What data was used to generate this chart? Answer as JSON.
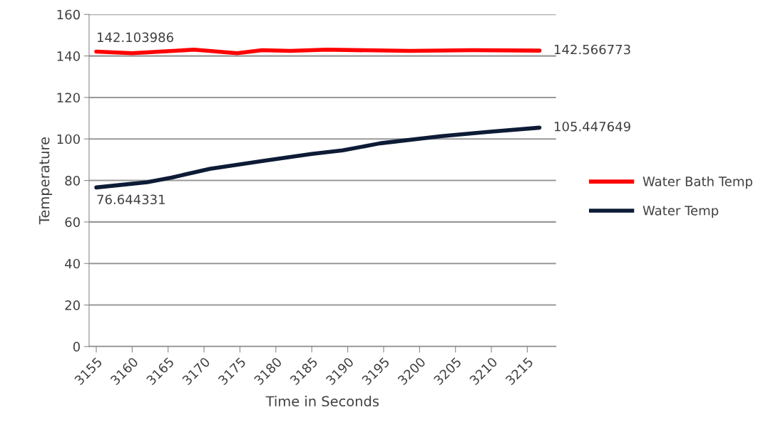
{
  "chart_data": {
    "type": "line",
    "xlabel": "Time in Seconds",
    "ylabel": "Temperature",
    "xlim": [
      3154,
      3219
    ],
    "xticks": [
      3155,
      3160,
      3165,
      3170,
      3175,
      3180,
      3185,
      3190,
      3195,
      3200,
      3205,
      3210,
      3215
    ],
    "ylim": [
      0,
      160
    ],
    "yticks": [
      0,
      20,
      40,
      60,
      80,
      100,
      120,
      140,
      160
    ],
    "grid": "y",
    "legend": "right",
    "series": [
      {
        "name": "Water Bath Temp",
        "color": "#ff0000",
        "x": [
          3155,
          3160,
          3168.6,
          3174.6,
          3178.1,
          3182,
          3187.1,
          3198.7,
          3207.4,
          3216.7
        ],
        "values": [
          142.103986,
          141.3,
          143,
          141.3,
          142.8,
          142.4,
          143,
          142.4,
          142.8,
          142.566773
        ],
        "value_labels": [
          "142.103986",
          null,
          null,
          null,
          null,
          null,
          null,
          null,
          null,
          "142.566773"
        ]
      },
      {
        "name": "Water Temp",
        "color": "#0d1b36",
        "x": [
          3155,
          3162.1,
          3165.5,
          3170.8,
          3178.1,
          3185,
          3189.3,
          3194.5,
          3203.1,
          3209.6,
          3216.7
        ],
        "values": [
          76.644331,
          79.2,
          81.4,
          85.6,
          89.4,
          92.8,
          94.5,
          97.9,
          101.4,
          103.4,
          105.447649
        ],
        "value_labels": [
          "76.644331",
          null,
          null,
          null,
          null,
          null,
          null,
          null,
          null,
          null,
          "105.447649"
        ]
      }
    ]
  }
}
